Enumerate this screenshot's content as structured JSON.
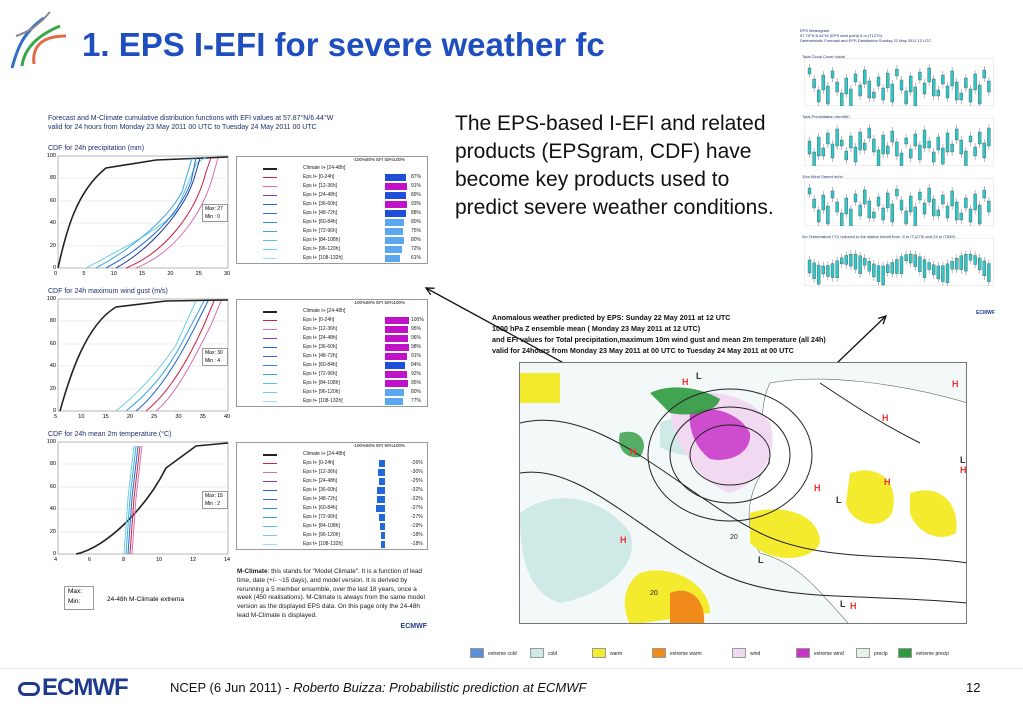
{
  "slide": {
    "title": "1. EPS I-EFI for severe weather fc",
    "body": "The EPS-based I-EFI and related products (EPSgram, CDF) have become key products used to predict severe weather conditions.",
    "footer_prefix": "NCEP (6 Jun 2011) - ",
    "footer_italic": "Roberto Buizza: Probabilistic prediction at ECMWF",
    "page_number": "12",
    "logo_text": "ECMWF"
  },
  "left_panel": {
    "header_line1": "Forecast and M-Climate cumulative distribution functions with EFI values at 57.87°N/6.44°W",
    "header_line2": "valid for 24 hours from Monday 23 May 2011 00 UTC to Tuesday 24 May 2011 00 UTC",
    "plots": [
      {
        "title": "CDF for 24h precipitation (mm)",
        "yticks": [
          "100",
          "80",
          "60",
          "40",
          "20",
          "0"
        ],
        "xticks": [
          "0",
          "5",
          "10",
          "15",
          "20",
          "25",
          "30"
        ],
        "maxmin": "Max: 27\nMin : 0",
        "max_label": "Max: 27",
        "min_label": "Min : 0",
        "legend_header": "-100%80% EFI 50%100%",
        "rows": [
          {
            "label": "Climate t+ [24-48h]",
            "value": ""
          },
          {
            "label": "Eps t+ [0-24h]",
            "value": "87%"
          },
          {
            "label": "Eps t+ [12-36h]",
            "value": "91%"
          },
          {
            "label": "Eps t+ [24-48h]",
            "value": "89%"
          },
          {
            "label": "Eps t+ [36-60h]",
            "value": "93%"
          },
          {
            "label": "Eps t+ [48-72h]",
            "value": "88%"
          },
          {
            "label": "Eps t+ [60-84h]",
            "value": "80%"
          },
          {
            "label": "Eps t+ [72-96h]",
            "value": "75%"
          },
          {
            "label": "Eps t+ [84-108h]",
            "value": "80%"
          },
          {
            "label": "Eps t+ [96-120h]",
            "value": "72%"
          },
          {
            "label": "Eps t+ [108-132h]",
            "value": "61%"
          }
        ]
      },
      {
        "title": "CDF for 24h maximum wind gust (m/s)",
        "yticks": [
          "100",
          "80",
          "60",
          "40",
          "20",
          "0"
        ],
        "xticks": [
          "5",
          "10",
          "15",
          "20",
          "25",
          "30",
          "35",
          "40"
        ],
        "max_label": "Max: 30",
        "min_label": "Min : 4",
        "legend_header": "-100%80% EFI 50%100%",
        "rows": [
          {
            "label": "Climate t+ [24-48h]",
            "value": ""
          },
          {
            "label": "Eps t+ [0-24h]",
            "value": "100%"
          },
          {
            "label": "Eps t+ [12-36h]",
            "value": "95%"
          },
          {
            "label": "Eps t+ [24-48h]",
            "value": "96%"
          },
          {
            "label": "Eps t+ [36-60h]",
            "value": "98%"
          },
          {
            "label": "Eps t+ [48-72h]",
            "value": "91%"
          },
          {
            "label": "Eps t+ [60-84h]",
            "value": "84%"
          },
          {
            "label": "Eps t+ [72-96h]",
            "value": "92%"
          },
          {
            "label": "Eps t+ [84-108h]",
            "value": "95%"
          },
          {
            "label": "Eps t+ [96-120h]",
            "value": "80%"
          },
          {
            "label": "Eps t+ [108-132h]",
            "value": "77%"
          }
        ]
      },
      {
        "title": "CDF for 24h mean 2m temperature (°C)",
        "yticks": [
          "100",
          "80",
          "60",
          "40",
          "20",
          "0"
        ],
        "xticks": [
          "4",
          "6",
          "8",
          "10",
          "12",
          "14"
        ],
        "max_label": "Max: 15",
        "min_label": "Min : 2",
        "legend_header": "-100%80% EFI 50%100%",
        "rows": [
          {
            "label": "Climate t+ [24-48h]",
            "value": ""
          },
          {
            "label": "Eps t+ [0-24h]",
            "value": "-26%"
          },
          {
            "label": "Eps t+ [12-36h]",
            "value": "-30%"
          },
          {
            "label": "Eps t+ [24-48h]",
            "value": "-25%"
          },
          {
            "label": "Eps t+ [36-60h]",
            "value": "-32%"
          },
          {
            "label": "Eps t+ [48-72h]",
            "value": "-32%"
          },
          {
            "label": "Eps t+ [60-84h]",
            "value": "-37%"
          },
          {
            "label": "Eps t+ [72-96h]",
            "value": "-27%"
          },
          {
            "label": "Eps t+ [84-108h]",
            "value": "-19%"
          },
          {
            "label": "Eps t+ [96-120h]",
            "value": "-18%"
          },
          {
            "label": "Eps t+ [108-132h]",
            "value": "-18%"
          }
        ]
      }
    ],
    "mclimate_bold": "M-Climate",
    "mclimate_text": ": this stands for \"Model Climate\". It is a function of lead time, date (+/- ~15 days), and model version. It is derived by rerunning a 5 member ensemble, over the last 18 years, once a week (450 realisations). M-Climate is always from the same model version as the displayed EPS data. On this page only the 24-48h lead M-Climate is displayed.",
    "maxmin_max": "Max:",
    "maxmin_min": "Min:",
    "extrema_label": "24-48h M-Climate extrema",
    "small_logo": "ECMWF"
  },
  "map": {
    "caption_line1": "Anomalous weather predicted by EPS: Sunday 22 May 2011 at 12 UTC",
    "caption_line2": "1000 hPa Z ensemble mean ( Monday 23 May 2011 at 12 UTC)",
    "caption_line3": "and EFI values for Total precipitation,maximum 10m wind gust and mean 2m temperature (all 24h)",
    "caption_line4": "valid for 24hours from  Monday 23 May 2011 at 00 UTC to  Tuesday 24 May 2011 at 00 UTC",
    "legend": [
      {
        "label": "extreme cold",
        "color": "#5a8fdc"
      },
      {
        "label": "cold",
        "color": "#cfe9e6"
      },
      {
        "label": "warm",
        "color": "#f4ea2e"
      },
      {
        "label": "extreme warm",
        "color": "#f08a1a"
      },
      {
        "label": "wind",
        "color": "#f2d9f2"
      },
      {
        "label": "extreme wind",
        "color": "#c832c8"
      },
      {
        "label": "precip",
        "color": "#e4f4e4"
      },
      {
        "label": "extreme precip",
        "color": "#2e9a3e"
      }
    ],
    "pressure_labels": [
      "H",
      "H",
      "H",
      "H",
      "H",
      "H",
      "H",
      "L",
      "L",
      "L",
      "L",
      "L",
      "H",
      "H"
    ],
    "contour_values": [
      "20",
      "20"
    ]
  },
  "epsgram": {
    "title": "EPS Meteogram",
    "line2": "57.75°N 6.43°W (EPS land point) 6 m (T1279)",
    "line3": "Deterministic Forecast and EPS Distribution Sunday 22 May 2011 12 UTC",
    "panels": [
      "Total Cloud Cover (okta)",
      "Total Precipitation (mm/6h)",
      "10m Wind Speed (m/s)",
      "2m Temperature (°C) reduced to the station height from -5 m (T1279) and 23 m (T639)"
    ],
    "logo": "ECMWF"
  }
}
